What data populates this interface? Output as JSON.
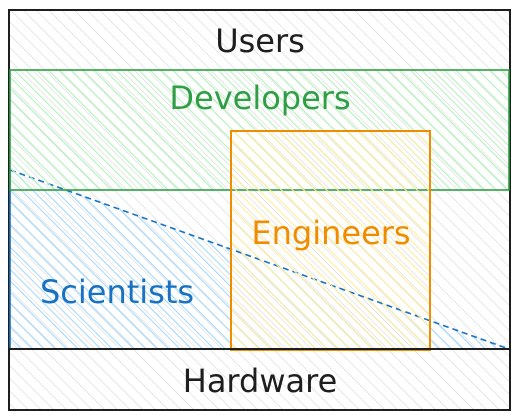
{
  "labels": {
    "users": "Users",
    "developers": "Developers",
    "engineers": "Engineers",
    "scientists": "Scientists",
    "hardware": "Hardware"
  },
  "colors": {
    "outline": "#1e1e1e",
    "developers": "#2f9e44",
    "developers_fill": "#b2f2bb",
    "engineers": "#f08c00",
    "engineers_fill": "#ffec99",
    "scientists": "#1971c2",
    "scientists_fill": "#a5d8ff",
    "hatch_gray": "#d7d7d7"
  }
}
